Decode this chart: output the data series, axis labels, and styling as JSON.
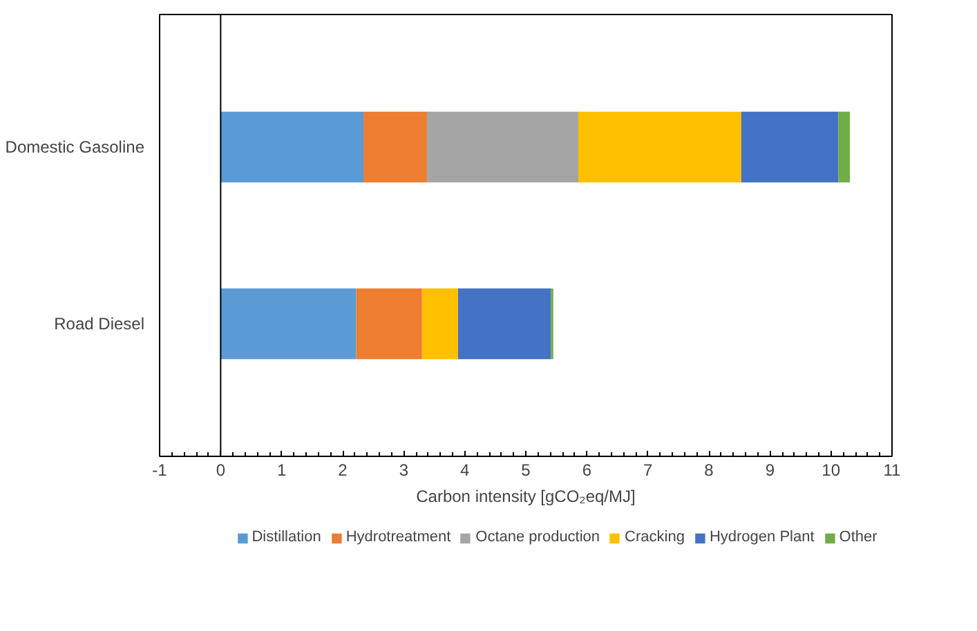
{
  "chart_data": {
    "type": "bar",
    "orientation": "horizontal",
    "stacked": true,
    "categories": [
      "Domestic Gasoline",
      "Road Diesel"
    ],
    "xlabel": "Carbon intensity [gCO₂eq/MJ]",
    "xlim": [
      -1,
      11
    ],
    "xticks": [
      -1,
      0,
      1,
      2,
      3,
      4,
      5,
      6,
      7,
      8,
      9,
      10,
      11
    ],
    "series": [
      {
        "name": "Distillation",
        "color": "#5b9bd5",
        "values": [
          2.34,
          2.22
        ]
      },
      {
        "name": "Hydrotreatment",
        "color": "#ed7d31",
        "values": [
          1.04,
          1.08
        ]
      },
      {
        "name": "Octane production",
        "color": "#a5a5a5",
        "values": [
          2.48,
          0
        ]
      },
      {
        "name": "Cracking",
        "color": "#ffc000",
        "values": [
          2.67,
          0.59
        ]
      },
      {
        "name": "Hydrogen Plant",
        "color": "#4472c4",
        "values": [
          1.59,
          1.52
        ]
      },
      {
        "name": "Other",
        "color": "#70ad47",
        "values": [
          0.19,
          0.04
        ]
      }
    ],
    "ref_lines": [
      {
        "axis": "x",
        "value": 0,
        "color": "#000000"
      }
    ],
    "grid": false,
    "legend": "bottom"
  }
}
